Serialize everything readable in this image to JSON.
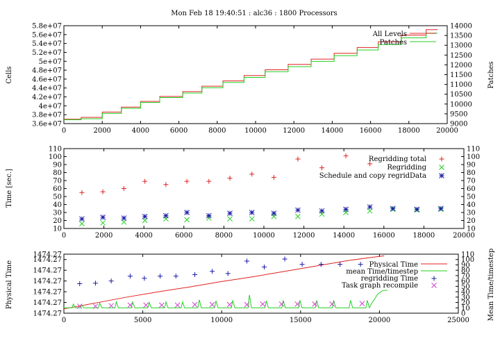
{
  "header": {
    "title": "Mon Feb 18 19:40:51 : alc36 : 1800 Processors"
  },
  "colors": {
    "red": "#e02020",
    "green": "#20d020",
    "blue": "#1a1aa8",
    "purple": "#8a2be2",
    "magenta": "#d040d0"
  },
  "chart_data": [
    {
      "type": "line",
      "xlabel": "",
      "ylabel": "Cells",
      "y2label": "Patches",
      "xlim": [
        0,
        20000
      ],
      "ylim": [
        36000000,
        58000000
      ],
      "y2lim": [
        9000,
        14000
      ],
      "xticks": [
        "0",
        "2000",
        "4000",
        "6000",
        "8000",
        "10000",
        "12000",
        "14000",
        "16000",
        "18000",
        "20000"
      ],
      "yticks": [
        "3.6e+07",
        "3.8e+07",
        "4e+07",
        "4.2e+07",
        "4.4e+07",
        "4.6e+07",
        "4.8e+07",
        "5e+07",
        "5.2e+07",
        "5.4e+07",
        "5.6e+07",
        "5.8e+07"
      ],
      "y2ticks": [
        "9000",
        "9500",
        "10000",
        "10500",
        "11000",
        "11500",
        "12000",
        "12500",
        "13000",
        "13500",
        "14000"
      ],
      "legend_position": "top-right",
      "series": [
        {
          "name": "All Levels",
          "axis": "left",
          "color": "#e02020",
          "x": [
            0,
            900,
            2000,
            3000,
            4000,
            5000,
            6200,
            7200,
            8300,
            9400,
            10500,
            11700,
            12900,
            14100,
            15300,
            16400,
            17600,
            18900
          ],
          "y": [
            37000000,
            37400000,
            38600000,
            39700000,
            41000000,
            42100000,
            43200000,
            44400000,
            45600000,
            46800000,
            48100000,
            49300000,
            50500000,
            51800000,
            53100000,
            54400000,
            55900000,
            57100000
          ]
        },
        {
          "name": "Patches",
          "axis": "right",
          "color": "#20d020",
          "x": [
            0,
            900,
            2000,
            3000,
            4000,
            5000,
            6200,
            7200,
            8300,
            9400,
            10500,
            11700,
            12900,
            14100,
            15300,
            16400,
            17600,
            18900
          ],
          "y": [
            9200,
            9250,
            9520,
            9780,
            10080,
            10330,
            10560,
            10830,
            11100,
            11360,
            11650,
            11910,
            12180,
            12470,
            12760,
            13040,
            13380,
            13620
          ]
        }
      ]
    },
    {
      "type": "scatter",
      "xlabel": "",
      "ylabel": "Time [sec.]",
      "xlim": [
        0,
        20000
      ],
      "ylim": [
        10,
        110
      ],
      "xticks": [
        "0",
        "2000",
        "4000",
        "6000",
        "8000",
        "10000",
        "12000",
        "14000",
        "16000",
        "18000",
        "20000"
      ],
      "yticks": [
        "10",
        "20",
        "30",
        "40",
        "50",
        "60",
        "70",
        "80",
        "90",
        "100",
        "110"
      ],
      "legend_position": "top-right",
      "series": [
        {
          "name": "Regridding total",
          "marker": "plus",
          "color": "#e02020",
          "x": [
            900,
            1950,
            3000,
            4050,
            5100,
            6150,
            7250,
            8300,
            9400,
            10500,
            11700,
            12900,
            14100,
            15300
          ],
          "y": [
            55,
            56,
            60,
            69,
            65,
            69,
            69,
            73,
            78,
            74,
            97,
            86,
            101,
            91
          ]
        },
        {
          "name": "Regridding",
          "marker": "x",
          "color": "#20d020",
          "x": [
            900,
            1950,
            3000,
            4050,
            5100,
            6150,
            7250,
            8300,
            9400,
            10500,
            11700,
            12900,
            14100,
            15300,
            16450,
            17650,
            18850
          ],
          "y": [
            16,
            17,
            18,
            20,
            22,
            21,
            23,
            22,
            22,
            25,
            25,
            28,
            30,
            32,
            34,
            33,
            34
          ]
        },
        {
          "name": "Schedule and copy regridData",
          "marker": "star",
          "color": "#1a1aa8",
          "x": [
            900,
            1950,
            3000,
            4050,
            5100,
            6150,
            7250,
            8300,
            9400,
            10500,
            11700,
            12900,
            14100,
            15300,
            16450,
            17650,
            18850
          ],
          "y": [
            22,
            24,
            23,
            25,
            26,
            30,
            26,
            29,
            30,
            29,
            33,
            32,
            34,
            37,
            35,
            34,
            35
          ]
        }
      ]
    },
    {
      "type": "line",
      "xlabel": "",
      "ylabel": "Physical Time",
      "y2label": "Mean Time/timestep",
      "xlim": [
        0,
        25000
      ],
      "ylim": [
        0,
        11
      ],
      "y2lim": [
        0,
        110
      ],
      "xticks": [
        "0",
        "5000",
        "10000",
        "15000",
        "20000",
        "25000"
      ],
      "yticks": [
        "1474.27",
        "1474.27",
        "1474.27",
        "1474.27",
        "1474.27",
        "1474.27",
        "1474.27"
      ],
      "y2ticks": [
        "0",
        "10",
        "20",
        "30",
        "40",
        "50",
        "60",
        "70",
        "80",
        "90",
        "100",
        "110"
      ],
      "legend_position": "top-right",
      "series": [
        {
          "name": "Physical Time",
          "color": "#e02020",
          "axis": "right",
          "x": [
            0,
            2000,
            4000,
            6000,
            8000,
            10000,
            12000,
            14000,
            16000,
            18000,
            19500,
            20300
          ],
          "y": [
            8,
            19,
            30,
            40,
            49,
            59,
            68,
            78,
            88,
            98,
            104,
            107
          ]
        },
        {
          "name": "mean Time/timestep",
          "color": "#20d020",
          "axis": "right",
          "baseline": 10,
          "spikes_x": [
            600,
            1130,
            2270,
            3320,
            4360,
            5410,
            6470,
            7520,
            8580,
            9640,
            10700,
            11760,
            12830,
            13900,
            14960,
            16020,
            17100,
            18170,
            19230
          ],
          "spikes_y": [
            17,
            15,
            19,
            21,
            21,
            20,
            21,
            21,
            25,
            23,
            24,
            34,
            23,
            24,
            24,
            24,
            24,
            24,
            24
          ],
          "tail_x": [
            19500,
            19900,
            20200,
            20500
          ],
          "tail_y": [
            18,
            36,
            42,
            43
          ]
        },
        {
          "name": "regridding Time",
          "marker": "plus",
          "color": "#1a1aa8",
          "axis": "right",
          "x": [
            1000,
            2000,
            3000,
            4200,
            5100,
            6100,
            7100,
            8300,
            9400,
            10400,
            11600,
            12700,
            14000,
            15100,
            16300,
            17500,
            18800
          ],
          "y": [
            55,
            56,
            60,
            69,
            65,
            69,
            69,
            72,
            78,
            74,
            97,
            86,
            101,
            91,
            91,
            91,
            91
          ]
        },
        {
          "name": "Task graph recompile",
          "marker": "x",
          "color": "#d040d0",
          "axis": "right",
          "x": [
            1000,
            2000,
            3000,
            4200,
            5200,
            6200,
            7200,
            8300,
            9400,
            10500,
            11600,
            12600,
            13800,
            14800,
            15900,
            17000,
            18900
          ],
          "y": [
            13,
            13,
            14,
            15,
            15,
            15,
            15,
            16,
            16,
            16,
            16,
            17,
            17,
            17,
            17,
            17,
            18
          ]
        }
      ]
    }
  ]
}
